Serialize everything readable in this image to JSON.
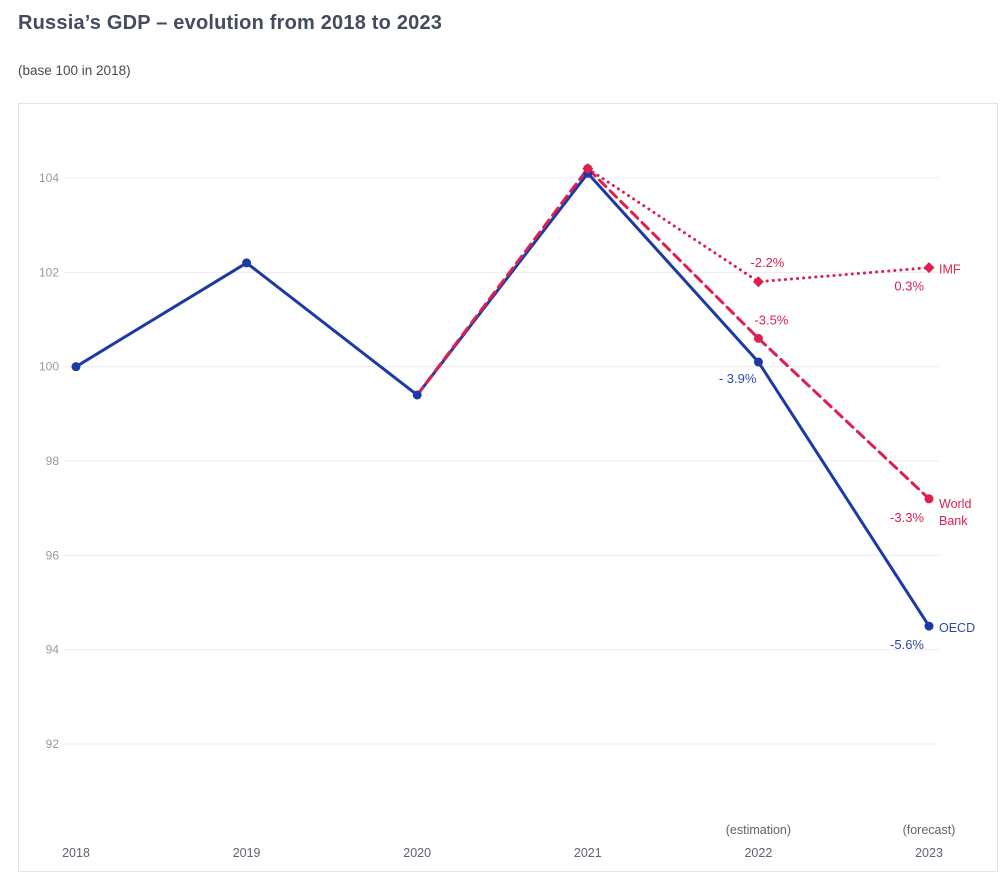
{
  "header": {
    "title": "Russia’s GDP – evolution from 2018 to 2023",
    "subtitle": "(base 100 in 2018)"
  },
  "colors": {
    "blue": "#1c3aa5",
    "blue_text": "#2c4aab",
    "red": "#dc2150",
    "grid": "#ececf1",
    "y_tick_label": "#949aa4",
    "x_tick_label": "#5d6570",
    "card_border": "#e3e3e8"
  },
  "chart_data": {
    "type": "line",
    "title": "Russia’s GDP – evolution from 2018 to 2023",
    "subtitle": "(base 100 in 2018)",
    "x_categories": [
      "2018",
      "2019",
      "2020",
      "2021",
      "2022",
      "2023"
    ],
    "x_sublabels": [
      "",
      "",
      "",
      "",
      "(estimation)",
      "(forecast)"
    ],
    "ylim": [
      91,
      105
    ],
    "yticks": [
      92,
      94,
      96,
      98,
      100,
      102,
      104
    ],
    "grid": true,
    "legend_position": "end-of-line",
    "series": [
      {
        "name": "OECD",
        "name_lines": [
          "OECD"
        ],
        "color": "#1c3aa5",
        "label_color": "#2c4aab",
        "line_style": "solid",
        "marker": "circle",
        "x": [
          "2018",
          "2019",
          "2020",
          "2021",
          "2022",
          "2023"
        ],
        "values": [
          100,
          102.2,
          99.4,
          104.1,
          100.1,
          94.5
        ],
        "point_labels": [
          {
            "x": "2022",
            "text": "- 3.9%",
            "dx": -2,
            "dy": 21,
            "anchor": "end"
          },
          {
            "x": "2023",
            "text": "-5.6%",
            "dx": -5,
            "dy": 23,
            "anchor": "end"
          }
        ]
      },
      {
        "name": "World Bank",
        "name_lines": [
          "World",
          "Bank"
        ],
        "color": "#dc2150",
        "label_color": "#dc2150",
        "line_style": "dashed",
        "marker": "circle",
        "markers_from": "2021",
        "x": [
          "2020",
          "2021",
          "2022",
          "2023"
        ],
        "values": [
          99.4,
          104.2,
          100.6,
          97.2
        ],
        "point_labels": [
          {
            "x": "2022",
            "text": "-3.5%",
            "dx": 13,
            "dy": -14,
            "anchor": "middle"
          },
          {
            "x": "2023",
            "text": "-3.3%",
            "dx": -5,
            "dy": 23,
            "anchor": "end"
          }
        ]
      },
      {
        "name": "IMF",
        "name_lines": [
          "IMF"
        ],
        "color": "#dc2150",
        "label_color": "#dc2150",
        "line_style": "dotted",
        "marker": "diamond",
        "x": [
          "2021",
          "2022",
          "2023"
        ],
        "values": [
          104.2,
          101.8,
          102.1
        ],
        "point_labels": [
          {
            "x": "2022",
            "text": "-2.2%",
            "dx": 9,
            "dy": -15,
            "anchor": "middle"
          },
          {
            "x": "2023",
            "text": "0.3%",
            "dx": -5,
            "dy": 23,
            "anchor": "end"
          }
        ]
      }
    ]
  }
}
